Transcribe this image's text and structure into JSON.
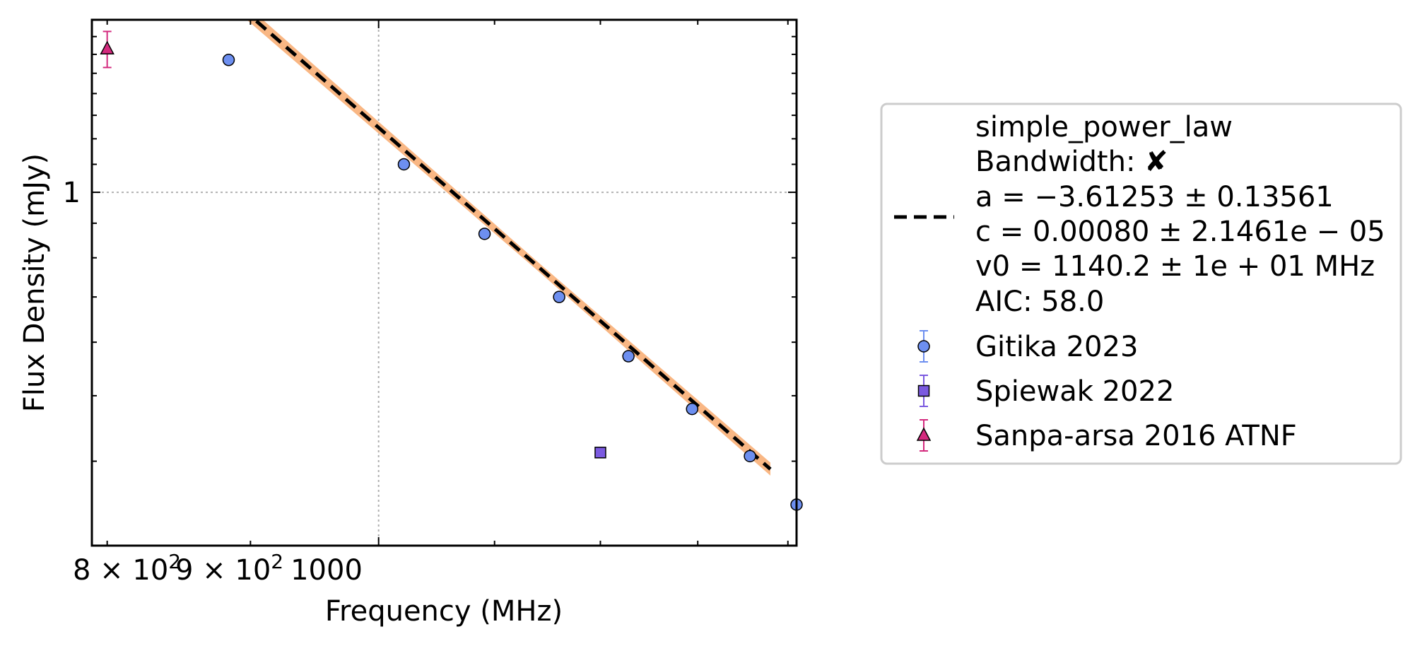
{
  "chart_data": {
    "type": "scatter",
    "title": "",
    "xlabel": "Frequency (MHz)",
    "ylabel": "Flux Density (mJy)",
    "x_scale": "log",
    "y_scale": "log",
    "xlim": [
      790,
      1410
    ],
    "ylim": [
      0.3,
      1.8
    ],
    "grid": true,
    "legend_position": "right-outside",
    "x_ticks": [
      {
        "value": 800,
        "label_base": "8",
        "label_sep": " × ",
        "label_mant": "10",
        "label_exp": "2"
      },
      {
        "value": 900,
        "label_base": "9",
        "label_sep": " × ",
        "label_mant": "10",
        "label_exp": "2"
      },
      {
        "value": 1000,
        "label_base": "",
        "label_sep": "",
        "label_mant": "1000",
        "label_exp": ""
      }
    ],
    "y_ticks": [
      {
        "value": 1,
        "label": "1"
      }
    ],
    "fit": {
      "model_label": "simple_power_law",
      "bandwidth_label": "Bandwidth: ✘",
      "param_a": "a = −3.61253 ± 0.13561",
      "param_c": "c = 0.00080 ± 2.1461e − 05",
      "param_v0": "v0 = 1140.2 ± 1e + 01 MHz",
      "aic": "AIC: 58.0",
      "a": -3.61253,
      "c": 0.0008,
      "v0": 1140.2,
      "x_range": [
        800,
        1380
      ],
      "line_color": "#000000",
      "band_color": "#f9b784"
    },
    "series": [
      {
        "name": "Gitika 2023",
        "marker": "circle",
        "color": "#6d8ff0",
        "error_color": "#6d8ff0",
        "points": [
          {
            "x": 884,
            "y": 1.57,
            "yerr": 0.02
          },
          {
            "x": 1021,
            "y": 1.1,
            "yerr": 0.015
          },
          {
            "x": 1091,
            "y": 0.868,
            "yerr": 0.012
          },
          {
            "x": 1160,
            "y": 0.7,
            "yerr": 0.01
          },
          {
            "x": 1228,
            "y": 0.572,
            "yerr": 0.008
          },
          {
            "x": 1294,
            "y": 0.478,
            "yerr": 0.006
          },
          {
            "x": 1357,
            "y": 0.407,
            "yerr": 0.005
          },
          {
            "x": 1410,
            "y": 0.345,
            "yerr": 0.004
          }
        ]
      },
      {
        "name": "Spiewak 2022",
        "marker": "square",
        "color": "#7b5ae0",
        "error_color": "#7b5ae0",
        "points": [
          {
            "x": 1200,
            "y": 0.412,
            "yerr": 0.004
          }
        ]
      },
      {
        "name": "Sanpa-arsa 2016 ATNF",
        "marker": "triangle",
        "color": "#d42a7e",
        "error_color": "#d42a7e",
        "points": [
          {
            "x": 800,
            "y": 1.63,
            "yerr": 0.1
          }
        ]
      }
    ]
  }
}
